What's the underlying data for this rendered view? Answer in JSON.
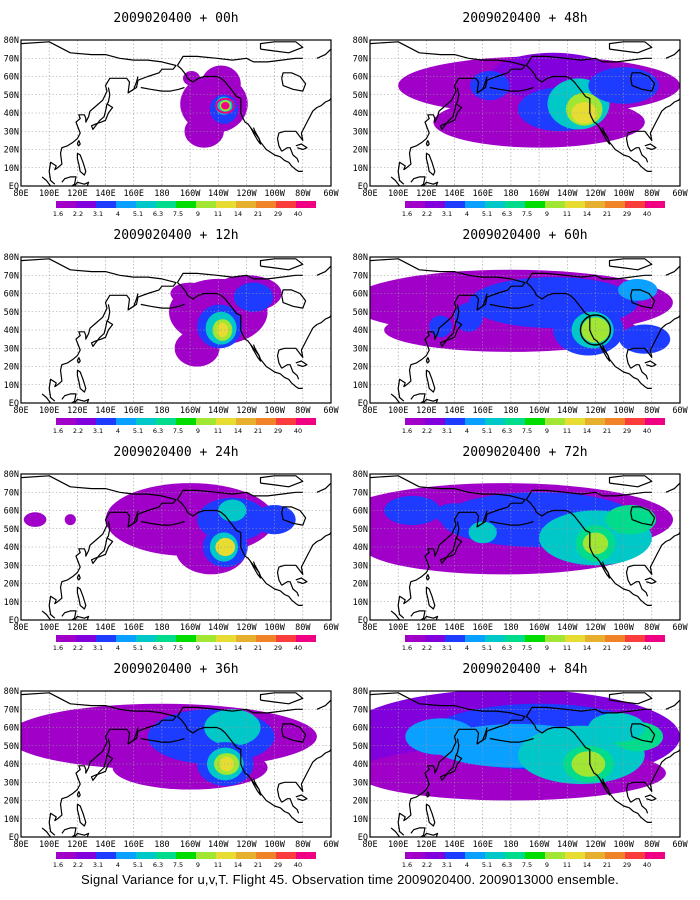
{
  "caption": "Signal Variance for u,v,T. Flight 45. Observation time 2009020400. 2009013000 ensemble.",
  "lat_labels": [
    "80N",
    "70N",
    "60N",
    "50N",
    "40N",
    "30N",
    "20N",
    "10N",
    "EQ"
  ],
  "lon_labels": [
    "80E",
    "100E",
    "120E",
    "140E",
    "160E",
    "180",
    "160W",
    "140W",
    "120W",
    "100W",
    "80W",
    "60W"
  ],
  "legend": {
    "labels": [
      "1.6",
      "2.2",
      "3.1",
      "4",
      "5.1",
      "6.3",
      "7.5",
      "9",
      "11",
      "14",
      "21",
      "29",
      "40"
    ],
    "colors": [
      "#a000c8",
      "#8200dc",
      "#1e3cff",
      "#0aa0ff",
      "#00c8c8",
      "#00dc8c",
      "#00dc00",
      "#a0e632",
      "#e6dc32",
      "#e6af2d",
      "#f08228",
      "#fa3c3c",
      "#f00082"
    ]
  },
  "panels": [
    {
      "title": "2009020400 + 00h",
      "lead_hours": 0
    },
    {
      "title": "2009020400 + 48h",
      "lead_hours": 48
    },
    {
      "title": "2009020400 + 12h",
      "lead_hours": 12
    },
    {
      "title": "2009020400 + 60h",
      "lead_hours": 60
    },
    {
      "title": "2009020400 + 24h",
      "lead_hours": 24
    },
    {
      "title": "2009020400 + 72h",
      "lead_hours": 72
    },
    {
      "title": "2009020400 + 36h",
      "lead_hours": 36
    },
    {
      "title": "2009020400 + 84h",
      "lead_hours": 84
    }
  ]
}
